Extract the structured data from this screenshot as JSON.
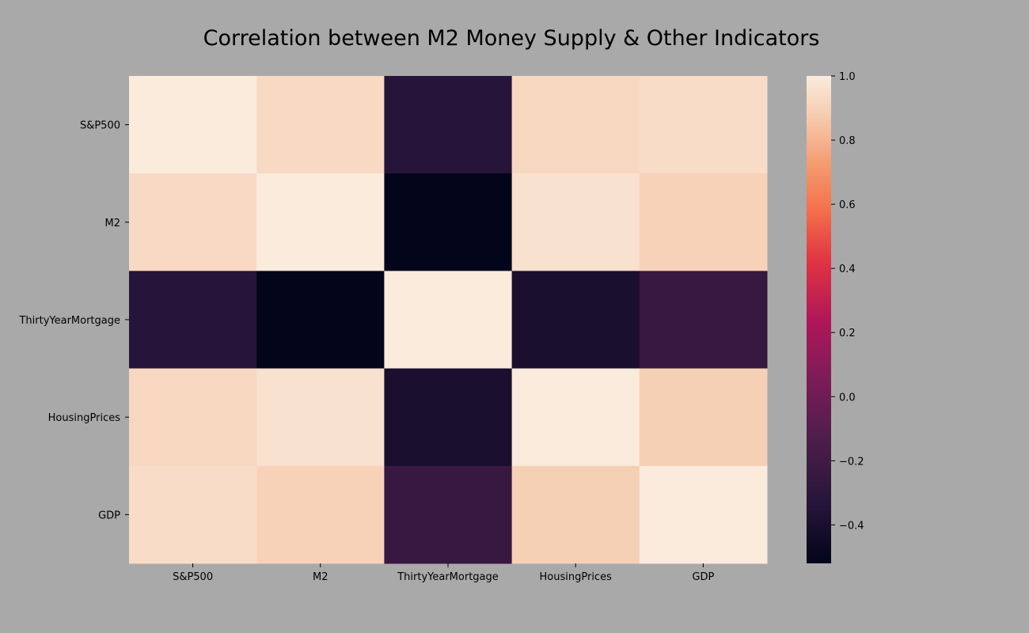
{
  "chart_data": {
    "type": "heatmap",
    "title": "Correlation between M2 Money Supply & Other Indicators",
    "xlabel": "",
    "ylabel": "",
    "rows": [
      "S&P500",
      "M2",
      "ThirtyYearMortgage",
      "HousingPrices",
      "GDP"
    ],
    "columns": [
      "S&P500",
      "M2",
      "ThirtyYearMortgage",
      "HousingPrices",
      "GDP"
    ],
    "values": [
      [
        1.0,
        0.93,
        -0.33,
        0.92,
        0.94
      ],
      [
        0.93,
        1.0,
        -0.52,
        0.96,
        0.9
      ],
      [
        -0.33,
        -0.52,
        1.0,
        -0.4,
        -0.25
      ],
      [
        0.92,
        0.96,
        -0.4,
        1.0,
        0.89
      ],
      [
        0.94,
        0.9,
        -0.25,
        0.89,
        1.0
      ]
    ],
    "colorbar": {
      "min": -0.52,
      "max": 1.0,
      "ticks": [
        -0.4,
        -0.2,
        0.0,
        0.2,
        0.4,
        0.6,
        0.8,
        1.0
      ],
      "tick_labels": [
        "−0.4",
        "−0.2",
        "0.0",
        "0.2",
        "0.4",
        "0.6",
        "0.8",
        "1.0"
      ],
      "colormap": "rocket",
      "placement": "right"
    },
    "colors": {
      "background": "#a9a9a9"
    }
  }
}
